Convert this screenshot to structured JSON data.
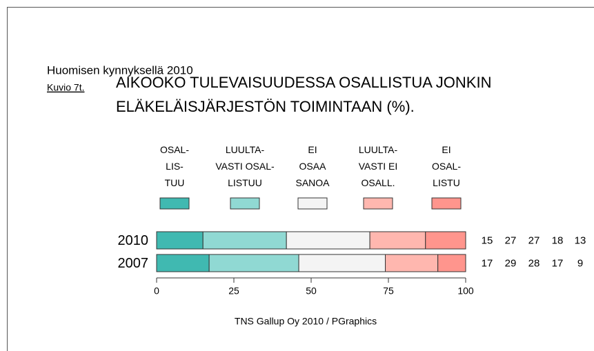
{
  "chart_data": {
    "type": "bar",
    "orientation": "horizontal",
    "stacked": true,
    "header": "Huomisen kynnyksellä 2010",
    "figure_label": "Kuvio 7t.",
    "title": [
      "AIKOOKO TULEVAISUUDESSA OSALLISTUA JONKIN",
      "ELÄKELÄISJÄRJESTÖN TOIMINTAAN (%)."
    ],
    "categories": [
      "2010",
      "2007"
    ],
    "series": [
      {
        "name": "OSAL-\nLIS-\nTUU",
        "color": "#40b9b1",
        "values": [
          15,
          17
        ]
      },
      {
        "name": "LUULTA-\nVASTI OSAL-\nLISTUU",
        "color": "#90d9d3",
        "values": [
          27,
          29
        ]
      },
      {
        "name": "EI\nOSAA\nSANOA",
        "color": "#f4f4f4",
        "values": [
          27,
          28
        ]
      },
      {
        "name": "LUULTA-\nVASTI EI\nOSALL.",
        "color": "#ffb7af",
        "values": [
          18,
          17
        ]
      },
      {
        "name": "EI\nOSAL-\nLISTU",
        "color": "#ff958d",
        "values": [
          13,
          9
        ]
      }
    ],
    "xlim": [
      0,
      100
    ],
    "xticks": [
      0,
      25,
      50,
      75,
      100
    ],
    "source": "TNS Gallup Oy 2010 / PGraphics"
  }
}
